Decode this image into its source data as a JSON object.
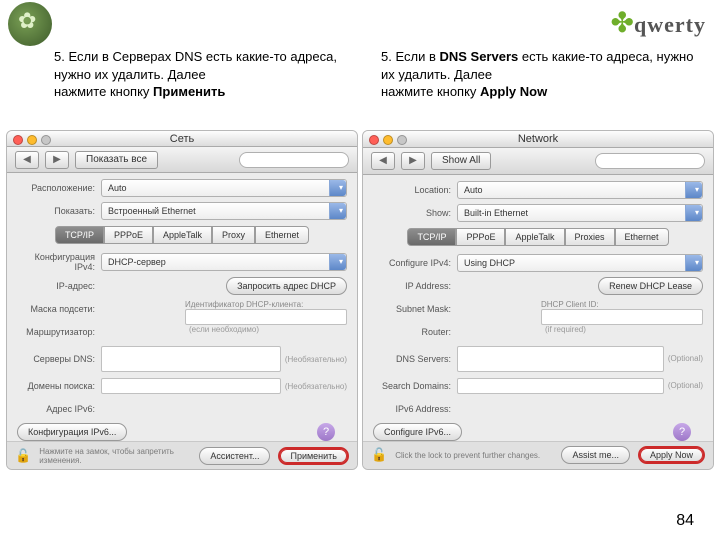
{
  "page_number": "84",
  "logo_text": "qwerty",
  "caption_ru": {
    "line1": "5. Если в Серверах DNS есть какие-то адреса, нужно их удалить. Далее",
    "line2_prefix": "нажмите кнопку ",
    "line2_bold": "Применить"
  },
  "caption_en": {
    "line1_prefix": "5. Если в ",
    "line1_bold": "DNS Servers",
    "line1_suffix": " есть какие-то адреса, нужно их удалить. Далее",
    "line2_prefix": "нажмите кнопку ",
    "line2_bold": "Apply Now"
  },
  "left": {
    "title": "Сеть",
    "showall": "Показать все",
    "location_lbl": "Расположение:",
    "location_val": "Auto",
    "show_lbl": "Показать:",
    "show_val": "Встроенный Ethernet",
    "tabs": [
      "TCP/IP",
      "PPPoE",
      "AppleTalk",
      "Proxy",
      "Ethernet"
    ],
    "cfg4_lbl": "Конфигурация IPv4:",
    "cfg4_val": "DHCP-сервер",
    "ip_lbl": "IP-адрес:",
    "renew": "Запросить адрес DHCP",
    "mask_lbl": "Маска подсети:",
    "client_lbl": "Идентификатор DHCP-клиента:",
    "client_hint": "(если необходимо)",
    "router_lbl": "Маршрутизатор:",
    "dns_lbl": "Серверы DNS:",
    "dns_hint": "(Необязательно)",
    "search_lbl": "Домены поиска:",
    "search_hint": "(Необязательно)",
    "ipv6_lbl": "Адрес IPv6:",
    "cfg6_btn": "Конфигурация IPv6...",
    "lock_txt": "Нажмите на замок, чтобы запретить изменения.",
    "assist": "Ассистент...",
    "apply": "Применить"
  },
  "right": {
    "title": "Network",
    "showall": "Show All",
    "location_lbl": "Location:",
    "location_val": "Auto",
    "show_lbl": "Show:",
    "show_val": "Built-in Ethernet",
    "tabs": [
      "TCP/IP",
      "PPPoE",
      "AppleTalk",
      "Proxies",
      "Ethernet"
    ],
    "cfg4_lbl": "Configure IPv4:",
    "cfg4_val": "Using DHCP",
    "ip_lbl": "IP Address:",
    "renew": "Renew DHCP Lease",
    "mask_lbl": "Subnet Mask:",
    "client_lbl": "DHCP Client ID:",
    "client_hint": "(if required)",
    "router_lbl": "Router:",
    "dns_lbl": "DNS Servers:",
    "dns_hint": "(Optional)",
    "search_lbl": "Search Domains:",
    "search_hint": "(Optional)",
    "ipv6_lbl": "IPv6 Address:",
    "cfg6_btn": "Configure IPv6...",
    "lock_txt": "Click the lock to prevent further changes.",
    "assist": "Assist me...",
    "apply": "Apply Now"
  }
}
